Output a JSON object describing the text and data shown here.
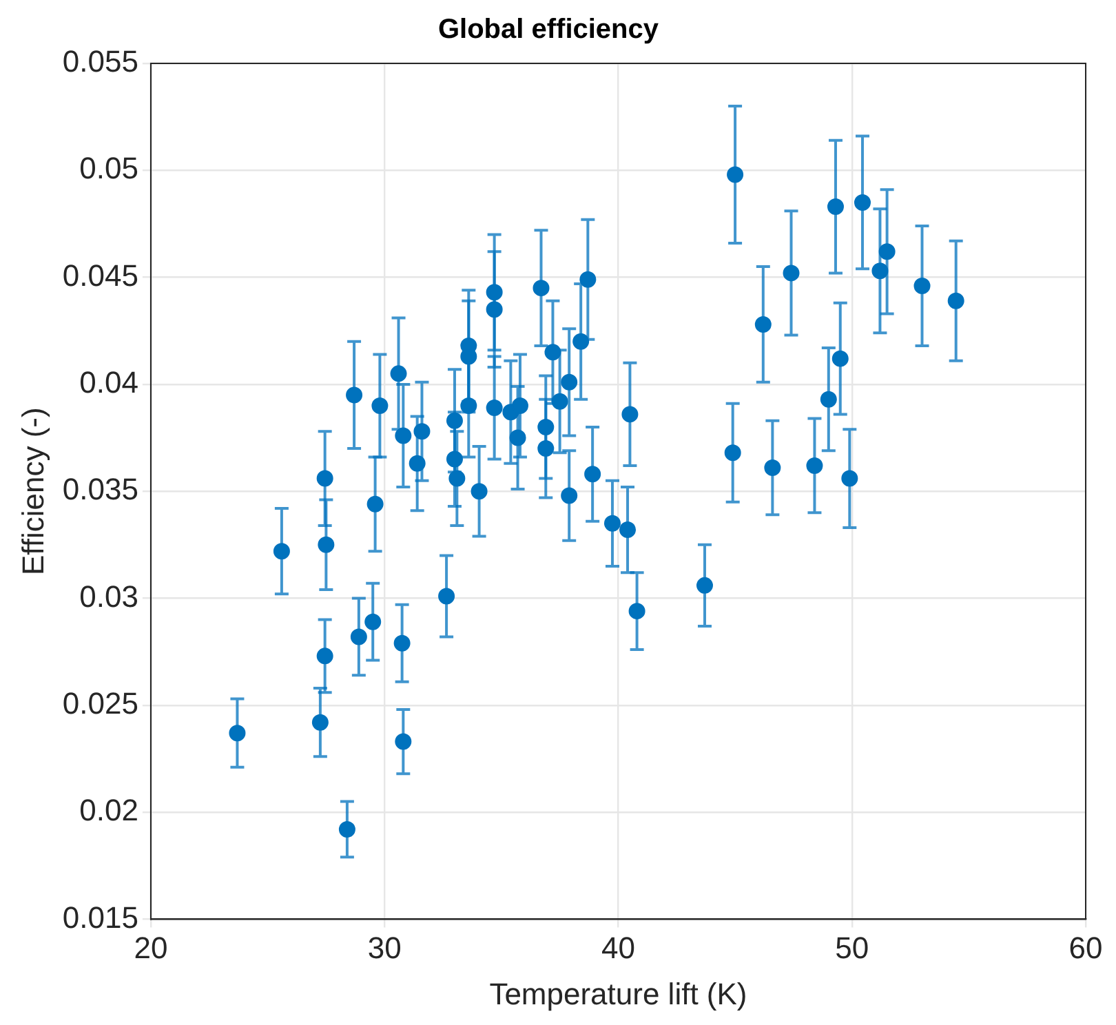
{
  "chart_data": {
    "type": "scatter",
    "title": "Global efficiency",
    "xlabel": "Temperature lift (K)",
    "ylabel": "Efficiency (-)",
    "xlim": [
      20,
      60
    ],
    "xticks": [
      20,
      30,
      40,
      50,
      60
    ],
    "ylim": [
      0.015,
      0.055
    ],
    "yticks": [
      0.015,
      0.02,
      0.025,
      0.03,
      0.035,
      0.04,
      0.045,
      0.05,
      0.055
    ],
    "grid": true,
    "marker": "circle",
    "legend": false,
    "series": [
      {
        "color": "#0072bd",
        "x": [
          23.7,
          25.6,
          27.25,
          27.45,
          27.45,
          27.5,
          28.4,
          28.7,
          28.9,
          29.5,
          29.6,
          29.8,
          30.6,
          30.75,
          30.8,
          30.8,
          31.4,
          31.6,
          32.65,
          33.0,
          33.0,
          33.1,
          33.6,
          33.6,
          33.6,
          34.05,
          34.7,
          34.7,
          34.7,
          35.4,
          35.7,
          35.8,
          36.7,
          36.9,
          36.9,
          37.2,
          37.5,
          37.9,
          37.9,
          38.4,
          38.7,
          38.9,
          39.75,
          40.4,
          40.5,
          40.8,
          43.7,
          44.9,
          45.0,
          46.2,
          46.6,
          47.4,
          48.4,
          49.0,
          49.3,
          49.5,
          49.9,
          50.45,
          51.2,
          51.5,
          53.0,
          54.45
        ],
        "values": [
          0.0237,
          0.0322,
          0.0242,
          0.0273,
          0.0356,
          0.0325,
          0.0192,
          0.0395,
          0.0282,
          0.0289,
          0.0344,
          0.039,
          0.0405,
          0.0279,
          0.0233,
          0.0376,
          0.0363,
          0.0378,
          0.0301,
          0.0383,
          0.0365,
          0.0356,
          0.0418,
          0.0413,
          0.039,
          0.035,
          0.0443,
          0.0435,
          0.0389,
          0.0387,
          0.0375,
          0.039,
          0.0445,
          0.038,
          0.037,
          0.0415,
          0.0392,
          0.0401,
          0.0348,
          0.042,
          0.0449,
          0.0358,
          0.0335,
          0.0332,
          0.0386,
          0.0294,
          0.0306,
          0.0368,
          0.0498,
          0.0428,
          0.0361,
          0.0452,
          0.0362,
          0.0393,
          0.0483,
          0.0412,
          0.0356,
          0.0485,
          0.0453,
          0.0462,
          0.0446,
          0.0439
        ],
        "errors": [
          0.0016,
          0.002,
          0.0016,
          0.0017,
          0.0022,
          0.0021,
          0.0013,
          0.0025,
          0.0018,
          0.0018,
          0.0022,
          0.0024,
          0.0026,
          0.0018,
          0.0015,
          0.0024,
          0.0022,
          0.0023,
          0.0019,
          0.0024,
          0.0022,
          0.0022,
          0.0026,
          0.0026,
          0.0024,
          0.0021,
          0.0027,
          0.0027,
          0.0024,
          0.0024,
          0.0024,
          0.0024,
          0.0027,
          0.0024,
          0.0023,
          0.0024,
          0.0024,
          0.0025,
          0.0021,
          0.0027,
          0.0028,
          0.0022,
          0.002,
          0.002,
          0.0024,
          0.0018,
          0.0019,
          0.0023,
          0.0032,
          0.0027,
          0.0022,
          0.0029,
          0.0022,
          0.0024,
          0.0031,
          0.0026,
          0.0023,
          0.0031,
          0.0029,
          0.0029,
          0.0028,
          0.0028
        ]
      }
    ]
  }
}
